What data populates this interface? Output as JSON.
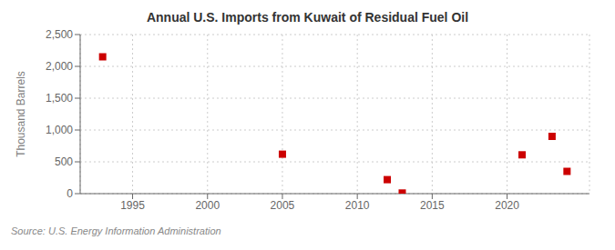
{
  "chart_data": {
    "type": "scatter",
    "title": "Annual U.S. Imports from Kuwait of Residual Fuel Oil",
    "ylabel": "Thousand Barrels",
    "source": "Source: U.S. Energy Information Administration",
    "x": [
      1993,
      2005,
      2012,
      2013,
      2021,
      2023,
      2024
    ],
    "values": [
      2150,
      620,
      220,
      10,
      610,
      900,
      350
    ],
    "color": "#cc0000",
    "marker": "square",
    "xlim": [
      1991.5,
      2025.5
    ],
    "ylim": [
      0,
      2500
    ],
    "xticks": [
      1995,
      2000,
      2005,
      2010,
      2015,
      2020
    ],
    "yticks": [
      0,
      500,
      {
        "value": 1000,
        "label": "1,000"
      },
      {
        "value": 1500,
        "label": "1,500"
      },
      {
        "value": 2000,
        "label": "2,000"
      },
      {
        "value": 2500,
        "label": "2,500"
      }
    ],
    "grid": true
  }
}
